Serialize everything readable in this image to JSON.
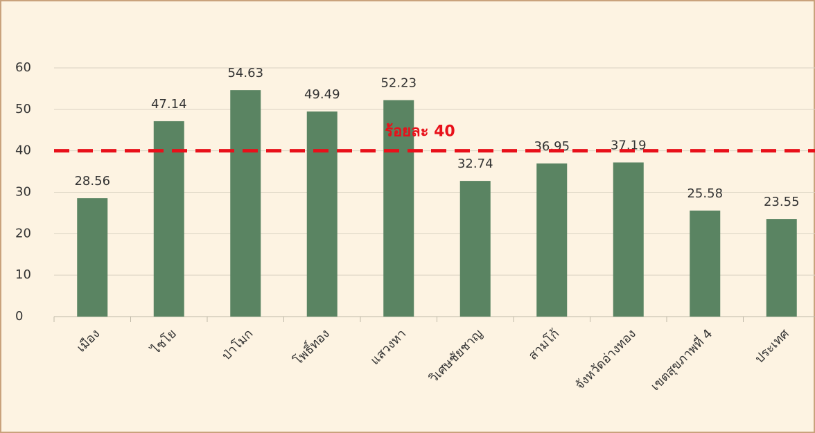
{
  "chart_data": {
    "type": "bar",
    "categories": [
      "เมือง",
      "ไชโย",
      "ป่าโมก",
      "โพธิ์ทอง",
      "แสวงหา",
      "วิเศษชัยชาญ",
      "สามโก้",
      "จังหวัดอ่างทอง",
      "เขตสุขภาพที่ 4",
      "ประเทศ"
    ],
    "values": [
      28.56,
      47.14,
      54.63,
      49.49,
      52.23,
      32.74,
      36.95,
      37.19,
      25.58,
      23.55
    ],
    "color": "#5a8462",
    "ylim": [
      0,
      60
    ],
    "yticks": [
      0,
      10,
      20,
      30,
      40,
      50,
      60
    ],
    "grid": true,
    "reference_line": {
      "value": 40,
      "label": "ร้อยละ 40",
      "color": "#e8101a"
    }
  }
}
